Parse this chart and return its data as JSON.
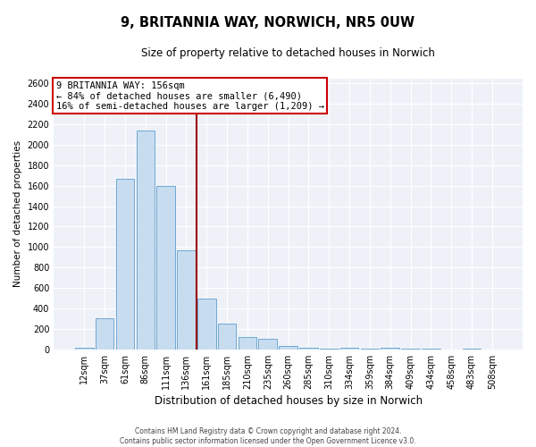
{
  "title_line1": "9, BRITANNIA WAY, NORWICH, NR5 0UW",
  "title_line2": "Size of property relative to detached houses in Norwich",
  "xlabel": "Distribution of detached houses by size in Norwich",
  "ylabel": "Number of detached properties",
  "bin_labels": [
    "12sqm",
    "37sqm",
    "61sqm",
    "86sqm",
    "111sqm",
    "136sqm",
    "161sqm",
    "185sqm",
    "210sqm",
    "235sqm",
    "260sqm",
    "285sqm",
    "310sqm",
    "334sqm",
    "359sqm",
    "384sqm",
    "409sqm",
    "434sqm",
    "458sqm",
    "483sqm",
    "508sqm"
  ],
  "bar_values": [
    20,
    300,
    1670,
    2140,
    1600,
    970,
    500,
    250,
    120,
    100,
    35,
    20,
    10,
    15,
    10,
    15,
    5,
    5,
    0,
    5,
    0
  ],
  "bar_color": "#c8dcf0",
  "bar_edge_color": "#6fa8d0",
  "vline_x": 5.5,
  "vline_color": "#990000",
  "annotation_title": "9 BRITANNIA WAY: 156sqm",
  "annotation_line1": "← 84% of detached houses are smaller (6,490)",
  "annotation_line2": "16% of semi-detached houses are larger (1,209) →",
  "annotation_box_color": "#ffffff",
  "annotation_box_edge": "#cc0000",
  "ylim": [
    0,
    2650
  ],
  "yticks": [
    0,
    200,
    400,
    600,
    800,
    1000,
    1200,
    1400,
    1600,
    1800,
    2000,
    2200,
    2400,
    2600
  ],
  "footer_line1": "Contains HM Land Registry data © Crown copyright and database right 2024.",
  "footer_line2": "Contains public sector information licensed under the Open Government Licence v3.0.",
  "bg_color": "#ffffff",
  "plot_bg_color": "#eef2f8",
  "grid_color": "#ffffff",
  "title1_fontsize": 10.5,
  "title2_fontsize": 8.5,
  "ylabel_fontsize": 7.5,
  "xlabel_fontsize": 8.5,
  "tick_fontsize": 7,
  "annotation_fontsize": 7.5,
  "footer_fontsize": 5.5
}
